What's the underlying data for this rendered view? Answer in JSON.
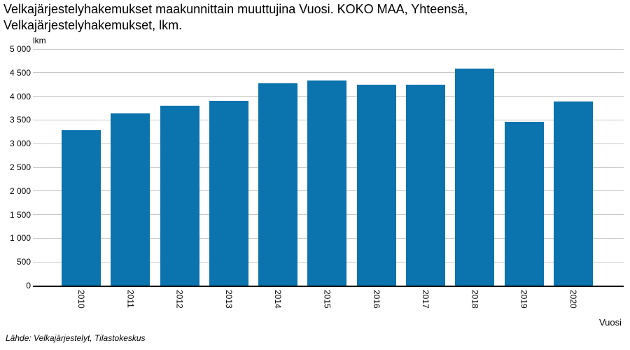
{
  "title": "Velkajärjestelyhakemukset maakunnittain muuttujina Vuosi. KOKO MAA, Yhteensä, Velkajärjestelyhakemukset, lkm.",
  "y_axis_unit": "lkm",
  "x_axis_title": "Vuosi",
  "source": "Lähde: Velkajärjestelyt, Tilastokeskus",
  "colors": {
    "bar": "#0b73ad",
    "grid": "#c8c8c8",
    "axis": "#000000",
    "background": "#ffffff"
  },
  "chart_data": {
    "type": "bar",
    "categories": [
      "2010",
      "2011",
      "2012",
      "2013",
      "2014",
      "2015",
      "2016",
      "2017",
      "2018",
      "2019",
      "2020"
    ],
    "values": [
      3280,
      3640,
      3800,
      3900,
      4270,
      4330,
      4240,
      4240,
      4590,
      3460,
      3890
    ],
    "title": "Velkajärjestelyhakemukset maakunnittain muuttujina Vuosi. KOKO MAA, Yhteensä, Velkajärjestelyhakemukset, lkm.",
    "xlabel": "Vuosi",
    "ylabel": "lkm",
    "ylim": [
      0,
      5000
    ],
    "ytick_step": 500,
    "grid": true,
    "legend": false,
    "bar_color": "#0b73ad",
    "tick_label_rotation": 90
  }
}
